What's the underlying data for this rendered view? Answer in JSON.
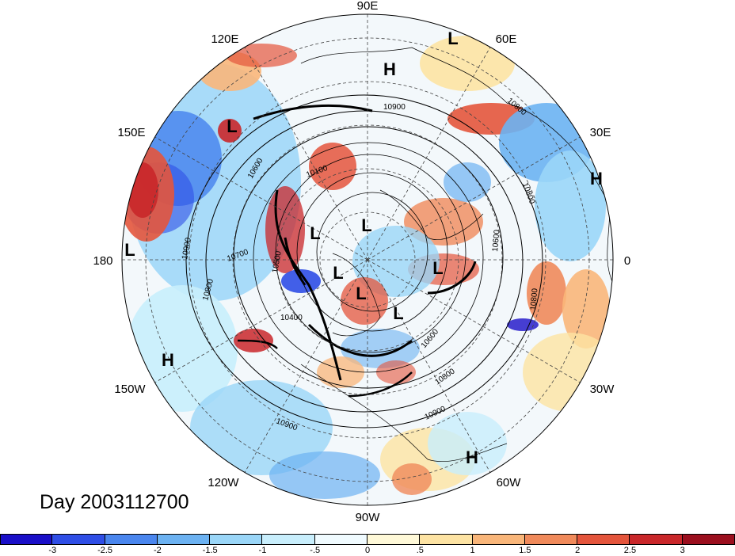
{
  "map": {
    "lon_labels": [
      {
        "id": "90E",
        "text": "90E"
      },
      {
        "id": "60E",
        "text": "60E"
      },
      {
        "id": "30E",
        "text": "30E"
      },
      {
        "id": "0",
        "text": "0"
      },
      {
        "id": "30W",
        "text": "30W"
      },
      {
        "id": "60W",
        "text": "60W"
      },
      {
        "id": "90W",
        "text": "90W"
      },
      {
        "id": "120W",
        "text": "120W"
      },
      {
        "id": "150W",
        "text": "150W"
      },
      {
        "id": "180",
        "text": "180"
      },
      {
        "id": "150E",
        "text": "150E"
      },
      {
        "id": "120E",
        "text": "120E"
      }
    ],
    "pressure_markers": [
      {
        "type": "L"
      },
      {
        "type": "H"
      },
      {
        "type": "L"
      },
      {
        "type": "H"
      },
      {
        "type": "L"
      },
      {
        "type": "L"
      },
      {
        "type": "L"
      },
      {
        "type": "L"
      },
      {
        "type": "L"
      },
      {
        "type": "L"
      },
      {
        "type": "L"
      },
      {
        "type": "H"
      },
      {
        "type": "H"
      }
    ],
    "contour_labels": [
      "10900",
      "10800",
      "10700",
      "10600",
      "10500",
      "10400",
      "10100",
      "10900",
      "10800",
      "10600",
      "10800",
      "10600",
      "10800",
      "10900",
      "10900",
      "10800"
    ]
  },
  "date_label": "Day 2003112700",
  "colorbar": {
    "colors": [
      "#1a0fc8",
      "#2f4ee6",
      "#4a86ee",
      "#6cb2f2",
      "#9ad6f8",
      "#c8eefc",
      "#f0fbff",
      "#fff9d8",
      "#fde3a3",
      "#f9b67a",
      "#f08a5b",
      "#e4553c",
      "#c9272a",
      "#9b0f1e"
    ],
    "labels": [
      "-3",
      "-2.5",
      "-2",
      "-1.5",
      "-1",
      "-.5",
      "0",
      ".5",
      "1",
      "1.5",
      "2",
      "2.5",
      "3"
    ]
  }
}
